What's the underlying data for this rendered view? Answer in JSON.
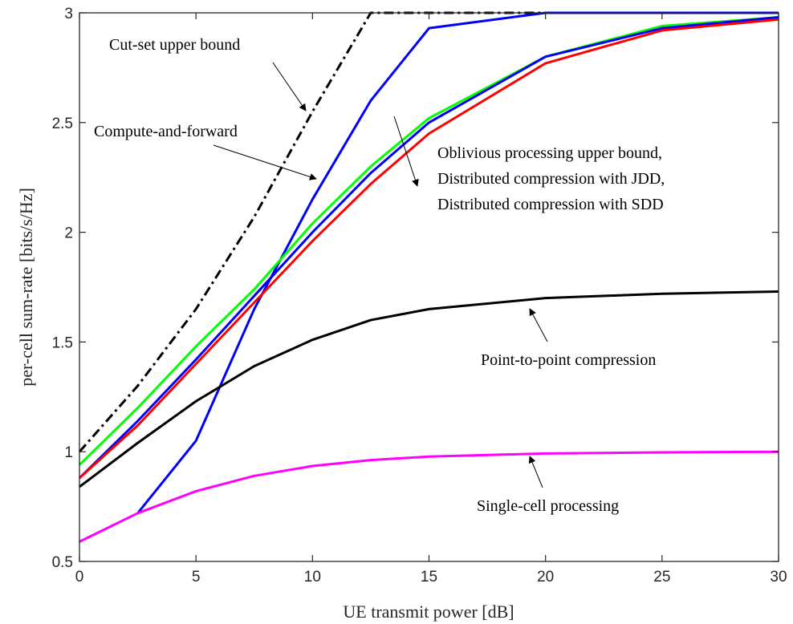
{
  "chart_data": {
    "type": "line",
    "xlabel": "UE transmit power [dB]",
    "ylabel": "per-cell sum-rate [bits/s/Hz]",
    "xlim": [
      0,
      30
    ],
    "ylim": [
      0.5,
      3
    ],
    "xticks": [
      0,
      5,
      10,
      15,
      20,
      25,
      30
    ],
    "yticks": [
      0.5,
      1,
      1.5,
      2,
      2.5,
      3
    ],
    "grid": false,
    "series": [
      {
        "color": "#000000",
        "dash": "dashdot",
        "x": [
          0,
          2.5,
          5,
          7.5,
          10,
          12.5,
          15,
          20,
          25,
          30
        ],
        "y": [
          1.0,
          1.3,
          1.65,
          2.07,
          2.55,
          3.0,
          3.0,
          3.0,
          3.0,
          3.0
        ]
      },
      {
        "color": "#0000ff",
        "dash": "solid",
        "x": [
          2.5,
          5,
          7.5,
          10,
          12.5,
          15,
          20,
          25,
          30
        ],
        "y": [
          0.72,
          1.05,
          1.65,
          2.15,
          2.6,
          2.93,
          3.0,
          3.0,
          3.0
        ]
      },
      {
        "color": "#00ff00",
        "dash": "solid",
        "x": [
          0,
          2.5,
          5,
          7.5,
          10,
          12.5,
          15,
          20,
          25,
          30
        ],
        "y": [
          0.94,
          1.2,
          1.48,
          1.74,
          2.04,
          2.3,
          2.52,
          2.8,
          2.94,
          2.98
        ]
      },
      {
        "color": "#0000ff",
        "dash": "solid",
        "x": [
          0,
          2.5,
          5,
          7.5,
          10,
          12.5,
          15,
          20,
          25,
          30
        ],
        "y": [
          0.88,
          1.14,
          1.42,
          1.71,
          2.0,
          2.27,
          2.5,
          2.8,
          2.93,
          2.98
        ]
      },
      {
        "color": "#ff0000",
        "dash": "solid",
        "x": [
          0,
          2.5,
          5,
          7.5,
          10,
          12.5,
          15,
          20,
          25,
          30
        ],
        "y": [
          0.88,
          1.12,
          1.4,
          1.68,
          1.96,
          2.22,
          2.45,
          2.77,
          2.92,
          2.97
        ]
      },
      {
        "color": "#000000",
        "dash": "solid",
        "x": [
          0,
          2.5,
          5,
          7.5,
          10,
          12.5,
          15,
          20,
          25,
          30
        ],
        "y": [
          0.84,
          1.04,
          1.23,
          1.39,
          1.51,
          1.6,
          1.65,
          1.7,
          1.72,
          1.73
        ]
      },
      {
        "color": "#ff00ff",
        "dash": "solid",
        "x": [
          0,
          2.5,
          5,
          7.5,
          10,
          12.5,
          15,
          20,
          25,
          30
        ],
        "y": [
          0.59,
          0.72,
          0.82,
          0.89,
          0.935,
          0.962,
          0.978,
          0.992,
          0.997,
          1.0
        ]
      }
    ],
    "annotations": [
      {
        "text": "Cut-set upper bound"
      },
      {
        "text": "Compute-and-forward"
      },
      {
        "text": "Oblivious processing upper bound,"
      },
      {
        "text": "Distributed compression with JDD,"
      },
      {
        "text": "Distributed compression with SDD"
      },
      {
        "text": "Point-to-point compression"
      },
      {
        "text": "Single-cell processing"
      }
    ]
  }
}
